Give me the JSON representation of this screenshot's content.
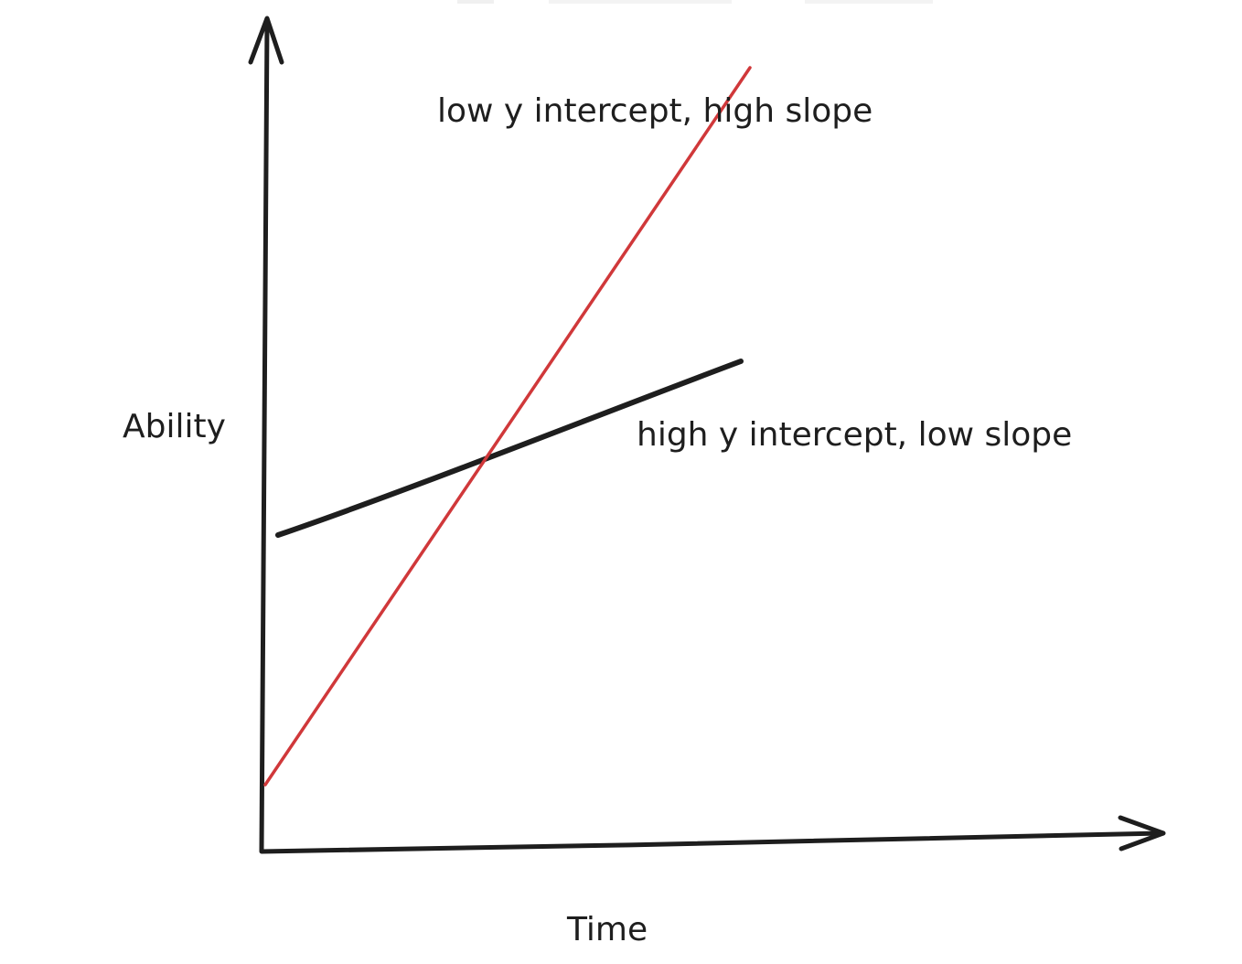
{
  "diagram": {
    "axes": {
      "x_label": "Time",
      "y_label": "Ability"
    },
    "lines": [
      {
        "id": "red-line",
        "label": "low y intercept, high slope",
        "color": "#d0383a"
      },
      {
        "id": "black-line",
        "label": "high y intercept, low slope",
        "color": "#1e1e1e"
      }
    ],
    "colors": {
      "axis": "#1e1e1e",
      "text": "#1e1e1e"
    }
  }
}
